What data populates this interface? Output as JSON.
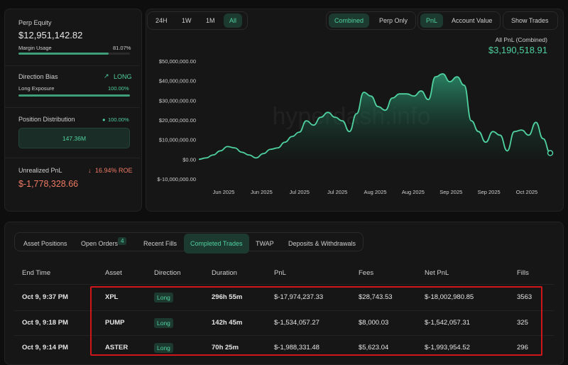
{
  "summary": {
    "perp_equity": {
      "label": "Perp Equity",
      "value": "$12,951,142.82"
    },
    "margin_usage": {
      "label": "Margin Usage",
      "value": 81.07,
      "value_label": "81.07%"
    },
    "direction_bias": {
      "label": "Direction Bias",
      "value": "LONG"
    },
    "long_exposure": {
      "label": "Long Exposure",
      "value": 100,
      "value_label": "100.00%"
    },
    "position_distribution": {
      "label": "Position Distribution",
      "value": 100,
      "value_label": "100.00%",
      "bar_label": "147.36M"
    },
    "unrealized_pnl": {
      "label": "Unrealized PnL",
      "value": "$-1,778,328.66",
      "roe": "16.94% ROE"
    }
  },
  "controls": {
    "ranges": [
      "24H",
      "1W",
      "1M",
      "All"
    ],
    "modes": [
      "Combined",
      "Perp Only"
    ],
    "views": [
      "PnL",
      "Account Value"
    ],
    "show_trades": "Show Trades"
  },
  "watermark": "hyperdash.info",
  "chart_data": {
    "type": "area",
    "title": "All PnL (Combined)",
    "current_value": "$3,190,518.91",
    "color": "#4fd1a0",
    "grid": false,
    "x_tick_labels": [
      "Jun 2025",
      "Jun 2025",
      "Jul 2025",
      "Jul 2025",
      "Aug 2025",
      "Aug 2025",
      "Sep 2025",
      "Sep 2025",
      "Oct 2025"
    ],
    "ylim": [
      -10000000,
      50000000
    ],
    "yticks": [
      {
        "value": -10000000,
        "label": "$-10,000,000.00"
      },
      {
        "value": 0,
        "label": "$0.00"
      },
      {
        "value": 10000000,
        "label": "$10,000,000.00"
      },
      {
        "value": 20000000,
        "label": "$20,000,000.00"
      },
      {
        "value": 30000000,
        "label": "$30,000,000.00"
      },
      {
        "value": 40000000,
        "label": "$40,000,000.00"
      },
      {
        "value": 50000000,
        "label": "$50,000,000.00"
      }
    ],
    "values": [
      0,
      700000,
      2200000,
      4300000,
      6500000,
      5800000,
      3600000,
      2200000,
      700000,
      2900000,
      5100000,
      5800000,
      8700000,
      11600000,
      13800000,
      19600000,
      17400000,
      21400000,
      23900000,
      21400000,
      19600000,
      14100000,
      23200000,
      34100000,
      32200000,
      26800000,
      25000000,
      31200000,
      33300000,
      33300000,
      32200000,
      34800000,
      30400000,
      42000000,
      43500000,
      39500000,
      42000000,
      37700000,
      19600000,
      14100000,
      8700000,
      14100000,
      12300000,
      4300000,
      14100000,
      14900000,
      12300000,
      18800000,
      10500000,
      3190000
    ]
  },
  "table": {
    "tabs": [
      "Asset Positions",
      "Open Orders",
      "Recent Fills",
      "Completed Trades",
      "TWAP",
      "Deposits & Withdrawals"
    ],
    "open_orders_count": "4",
    "columns": [
      "End Time",
      "Asset",
      "Direction",
      "Duration",
      "PnL",
      "Fees",
      "Net PnL",
      "Fills"
    ],
    "rows": [
      [
        "Oct 9, 9:37 PM",
        "XPL",
        "Long",
        "296h 55m",
        "$-17,974,237.33",
        "$28,743.53",
        "$-18,002,980.85",
        "3563"
      ],
      [
        "Oct 9, 9:18 PM",
        "PUMP",
        "Long",
        "142h 45m",
        "$-1,534,057.27",
        "$8,000.03",
        "$-1,542,057.31",
        "325"
      ],
      [
        "Oct 9, 9:14 PM",
        "ASTER",
        "Long",
        "70h 25m",
        "$-1,988,331.48",
        "$5,623.04",
        "$-1,993,954.52",
        "296"
      ]
    ]
  }
}
